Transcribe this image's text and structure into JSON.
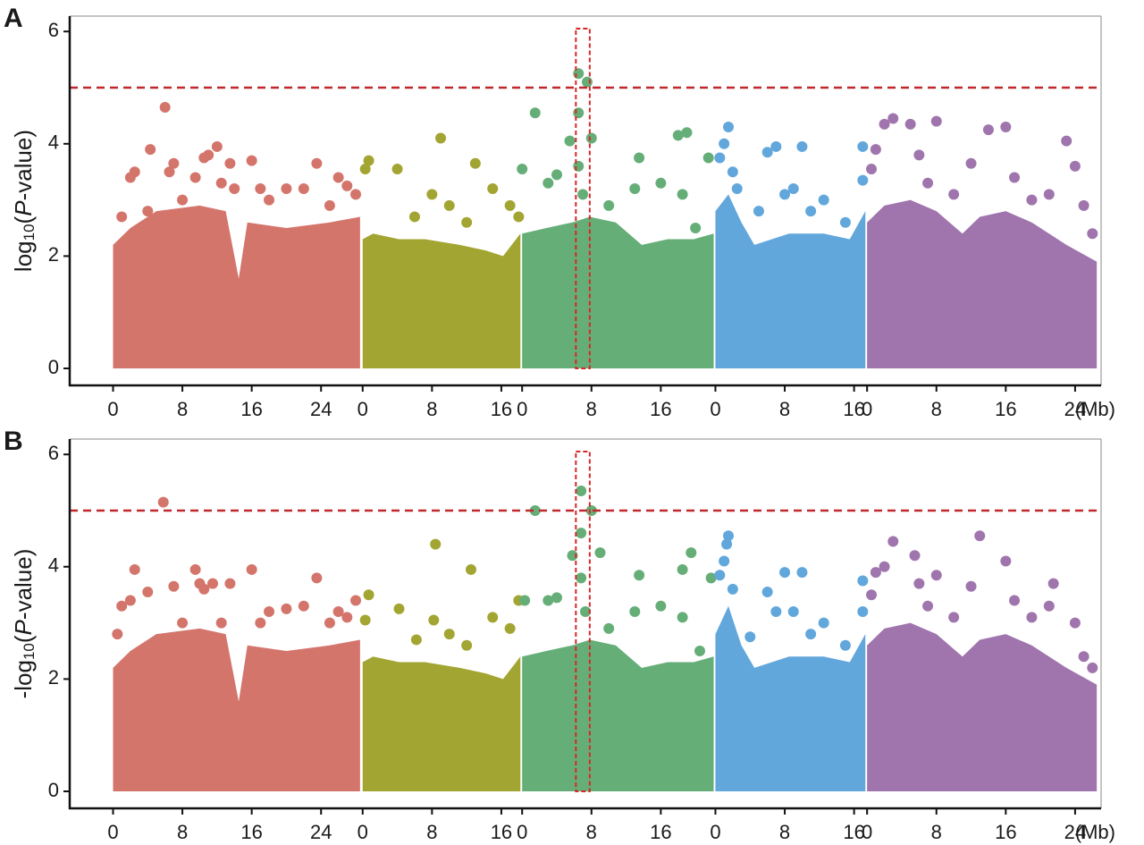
{
  "chart_data": [
    {
      "type": "scatter",
      "panel_label": "A",
      "ylabel_parts": [
        "log",
        "10",
        "(",
        "P",
        "-value)"
      ],
      "xlabel": "(Mb)",
      "xlim": [
        -5,
        114
      ],
      "ylim": [
        -0.3,
        6.3
      ],
      "yticks": [
        0,
        2,
        4,
        6
      ],
      "xticks": [
        {
          "value": 0,
          "label": "0"
        },
        {
          "value": 8,
          "label": "8"
        },
        {
          "value": 16,
          "label": "16"
        },
        {
          "value": 24,
          "label": "24"
        },
        {
          "value": 28.8,
          "label": "0"
        },
        {
          "value": 36.8,
          "label": "8"
        },
        {
          "value": 44.8,
          "label": "16"
        },
        {
          "value": 47.2,
          "label": "0"
        },
        {
          "value": 55.2,
          "label": "8"
        },
        {
          "value": 63.2,
          "label": "16"
        },
        {
          "value": 69.5,
          "label": "0"
        },
        {
          "value": 77.5,
          "label": "8"
        },
        {
          "value": 85.5,
          "label": "16"
        },
        {
          "value": 87,
          "label": "0"
        },
        {
          "value": 95,
          "label": "8"
        },
        {
          "value": 103,
          "label": "16"
        },
        {
          "value": 111,
          "label": "24"
        }
      ],
      "threshold": 5,
      "threshold_color": "#c0282d",
      "highlight_box": {
        "x": [
          53.4,
          55.0
        ],
        "y": [
          0,
          6.05
        ],
        "color": "#d62728"
      },
      "series": [
        {
          "color": "#d4756c",
          "fill_x": [
            0,
            2,
            5,
            10,
            13,
            14.5,
            15.5,
            20,
            25,
            28.5
          ],
          "fill_y": [
            2.2,
            2.5,
            2.8,
            2.9,
            2.8,
            1.6,
            2.6,
            2.5,
            2.6,
            2.7
          ],
          "x": [
            1,
            2,
            2.5,
            4,
            4.3,
            6,
            6.5,
            7,
            8,
            9.5,
            10.5,
            11,
            12,
            12.5,
            13.5,
            14,
            16,
            17,
            18,
            20,
            22,
            23.5,
            25,
            26,
            27,
            28
          ],
          "values": [
            2.7,
            3.4,
            3.5,
            2.8,
            3.9,
            4.65,
            3.5,
            3.65,
            3.0,
            3.4,
            3.75,
            3.8,
            3.95,
            3.3,
            3.65,
            3.2,
            3.7,
            3.2,
            3.0,
            3.2,
            3.2,
            3.65,
            2.9,
            3.4,
            3.25,
            3.1
          ]
        },
        {
          "color": "#a3a533",
          "fill_x": [
            28.8,
            30,
            33,
            36,
            40,
            43,
            45,
            47
          ],
          "fill_y": [
            2.3,
            2.4,
            2.3,
            2.3,
            2.2,
            2.1,
            2.0,
            2.4
          ],
          "x": [
            29.1,
            29.5,
            32.8,
            34.8,
            36.8,
            37.8,
            38.8,
            40.8,
            41.8,
            43.8,
            45.8,
            46.8
          ],
          "values": [
            3.55,
            3.7,
            3.55,
            2.7,
            3.1,
            4.1,
            2.9,
            2.6,
            3.65,
            3.2,
            2.9,
            2.7
          ]
        },
        {
          "color": "#66ae78",
          "fill_x": [
            47.2,
            50,
            53,
            55,
            58,
            61,
            64,
            67,
            69.3
          ],
          "fill_y": [
            2.4,
            2.5,
            2.6,
            2.7,
            2.6,
            2.2,
            2.3,
            2.3,
            2.4
          ],
          "x": [
            47.2,
            48.7,
            50.2,
            51.2,
            52.7,
            53.7,
            53.7,
            53.7,
            54.7,
            55.2,
            54.2,
            57.2,
            60.7,
            60.2,
            63.2,
            65.2,
            66.2,
            65.7,
            67.2,
            68.7
          ],
          "values": [
            3.55,
            4.55,
            3.3,
            3.45,
            4.05,
            5.25,
            4.55,
            3.6,
            5.1,
            4.1,
            3.1,
            2.9,
            3.75,
            3.2,
            3.3,
            4.15,
            4.2,
            3.1,
            2.5,
            3.75
          ]
        },
        {
          "color": "#62a7dc",
          "fill_x": [
            69.5,
            71,
            72.5,
            74,
            78,
            82,
            85,
            86.8
          ],
          "fill_y": [
            2.8,
            3.1,
            2.6,
            2.2,
            2.4,
            2.4,
            2.3,
            2.8
          ],
          "x": [
            70,
            70.5,
            71,
            71.5,
            72,
            74.5,
            75.5,
            76.5,
            77.5,
            78.5,
            79.5,
            80.5,
            82,
            84.5,
            86.5,
            86.5
          ],
          "values": [
            3.75,
            4.0,
            4.3,
            3.5,
            3.2,
            2.8,
            3.85,
            3.95,
            3.1,
            3.2,
            3.95,
            2.8,
            3.0,
            2.6,
            3.35,
            3.95
          ]
        },
        {
          "color": "#a075ad",
          "fill_x": [
            87,
            89,
            92,
            95,
            98,
            100,
            103,
            106,
            110,
            113.5
          ],
          "fill_y": [
            2.6,
            2.9,
            3.0,
            2.8,
            2.4,
            2.7,
            2.8,
            2.6,
            2.2,
            1.9
          ],
          "x": [
            87.5,
            88,
            89,
            90,
            92,
            93,
            94,
            95,
            97,
            99,
            101,
            103,
            104,
            106,
            108,
            110,
            111,
            112,
            113
          ],
          "values": [
            3.55,
            3.9,
            4.35,
            4.45,
            4.35,
            3.8,
            3.3,
            4.4,
            3.1,
            3.65,
            4.25,
            4.3,
            3.4,
            3.0,
            3.1,
            4.05,
            3.6,
            2.9,
            2.4
          ]
        }
      ]
    },
    {
      "type": "scatter",
      "panel_label": "B",
      "ylabel_parts": [
        "-log",
        "10",
        "(",
        "P",
        "-value)"
      ],
      "xlabel": "(Mb)",
      "xlim": [
        -5,
        114
      ],
      "ylim": [
        -0.3,
        6.3
      ],
      "yticks": [
        0,
        2,
        4,
        6
      ],
      "xticks": [
        {
          "value": 0,
          "label": "0"
        },
        {
          "value": 8,
          "label": "8"
        },
        {
          "value": 16,
          "label": "16"
        },
        {
          "value": 24,
          "label": "24"
        },
        {
          "value": 28.8,
          "label": "0"
        },
        {
          "value": 36.8,
          "label": "8"
        },
        {
          "value": 44.8,
          "label": "16"
        },
        {
          "value": 47.2,
          "label": "0"
        },
        {
          "value": 55.2,
          "label": "8"
        },
        {
          "value": 63.2,
          "label": "16"
        },
        {
          "value": 69.5,
          "label": "0"
        },
        {
          "value": 77.5,
          "label": "8"
        },
        {
          "value": 85.5,
          "label": "16"
        },
        {
          "value": 87,
          "label": "0"
        },
        {
          "value": 95,
          "label": "8"
        },
        {
          "value": 103,
          "label": "16"
        },
        {
          "value": 111,
          "label": "24"
        }
      ],
      "threshold": 5,
      "threshold_color": "#c0282d",
      "highlight_box": {
        "x": [
          53.4,
          55.0
        ],
        "y": [
          0,
          6.05
        ],
        "color": "#d62728"
      },
      "series": [
        {
          "color": "#d4756c",
          "fill_x": [
            0,
            2,
            5,
            10,
            13,
            14.5,
            15.5,
            20,
            25,
            28.5
          ],
          "fill_y": [
            2.2,
            2.5,
            2.8,
            2.9,
            2.8,
            1.6,
            2.6,
            2.5,
            2.6,
            2.7
          ],
          "x": [
            0.5,
            1,
            2,
            2.5,
            4,
            5.8,
            7,
            8,
            9.5,
            10,
            10.5,
            11.5,
            12.5,
            13.5,
            16,
            17,
            18,
            20,
            22,
            23.5,
            25,
            26,
            27,
            28
          ],
          "values": [
            2.8,
            3.3,
            3.4,
            3.95,
            3.55,
            5.15,
            3.65,
            3.0,
            3.95,
            3.7,
            3.6,
            3.7,
            3.0,
            3.7,
            3.95,
            3.0,
            3.2,
            3.25,
            3.3,
            3.8,
            3.0,
            3.2,
            3.1,
            3.4
          ]
        },
        {
          "color": "#a3a533",
          "fill_x": [
            28.8,
            30,
            33,
            36,
            40,
            43,
            45,
            47
          ],
          "fill_y": [
            2.3,
            2.4,
            2.3,
            2.3,
            2.2,
            2.1,
            2.0,
            2.4
          ],
          "x": [
            29.1,
            29.5,
            33,
            35,
            37,
            37.2,
            38.8,
            40.8,
            41.3,
            43.8,
            45.8,
            46.8
          ],
          "values": [
            3.05,
            3.5,
            3.25,
            2.7,
            3.05,
            4.4,
            2.8,
            2.6,
            3.95,
            3.1,
            2.9,
            3.4
          ]
        },
        {
          "color": "#66ae78",
          "fill_x": [
            47.2,
            50,
            53,
            55,
            58,
            61,
            64,
            67,
            69.3
          ],
          "fill_y": [
            2.4,
            2.5,
            2.6,
            2.7,
            2.6,
            2.2,
            2.3,
            2.3,
            2.4
          ],
          "x": [
            47.5,
            48.7,
            50.2,
            51.2,
            53,
            54,
            54,
            54,
            55.2,
            56.2,
            54.5,
            57.2,
            60.7,
            60.2,
            63.2,
            65.7,
            66.7,
            65.7,
            67.7,
            69
          ],
          "values": [
            3.4,
            5.0,
            3.4,
            3.45,
            4.2,
            5.35,
            4.6,
            3.8,
            5.0,
            4.25,
            3.2,
            2.9,
            3.85,
            3.2,
            3.3,
            3.95,
            4.25,
            3.1,
            2.5,
            3.8
          ]
        },
        {
          "color": "#62a7dc",
          "fill_x": [
            69.5,
            71,
            72.5,
            74,
            78,
            82,
            85,
            86.8
          ],
          "fill_y": [
            2.8,
            3.3,
            2.6,
            2.2,
            2.4,
            2.4,
            2.3,
            2.8
          ],
          "x": [
            70,
            70.5,
            70.8,
            71,
            71.5,
            73.5,
            75.5,
            77.5,
            76.5,
            78.5,
            79.5,
            80.5,
            82,
            84.5,
            86.5,
            86.5
          ],
          "values": [
            3.85,
            4.1,
            4.4,
            4.55,
            3.6,
            2.75,
            3.55,
            3.9,
            3.2,
            3.2,
            3.9,
            2.8,
            3.0,
            2.6,
            3.2,
            3.75
          ]
        },
        {
          "color": "#a075ad",
          "fill_x": [
            87,
            89,
            92,
            95,
            98,
            100,
            103,
            106,
            110,
            113.5
          ],
          "fill_y": [
            2.6,
            2.9,
            3.0,
            2.8,
            2.4,
            2.7,
            2.8,
            2.6,
            2.2,
            1.9
          ],
          "x": [
            87.5,
            88,
            89,
            90,
            92.5,
            93,
            94,
            95,
            97,
            99,
            100,
            103,
            104,
            106,
            108,
            108.5,
            111,
            112,
            113
          ],
          "values": [
            3.5,
            3.9,
            4.0,
            4.45,
            4.2,
            3.7,
            3.3,
            3.85,
            3.1,
            3.65,
            4.55,
            4.1,
            3.4,
            3.1,
            3.3,
            3.7,
            3.0,
            2.4,
            2.2
          ]
        }
      ]
    }
  ]
}
